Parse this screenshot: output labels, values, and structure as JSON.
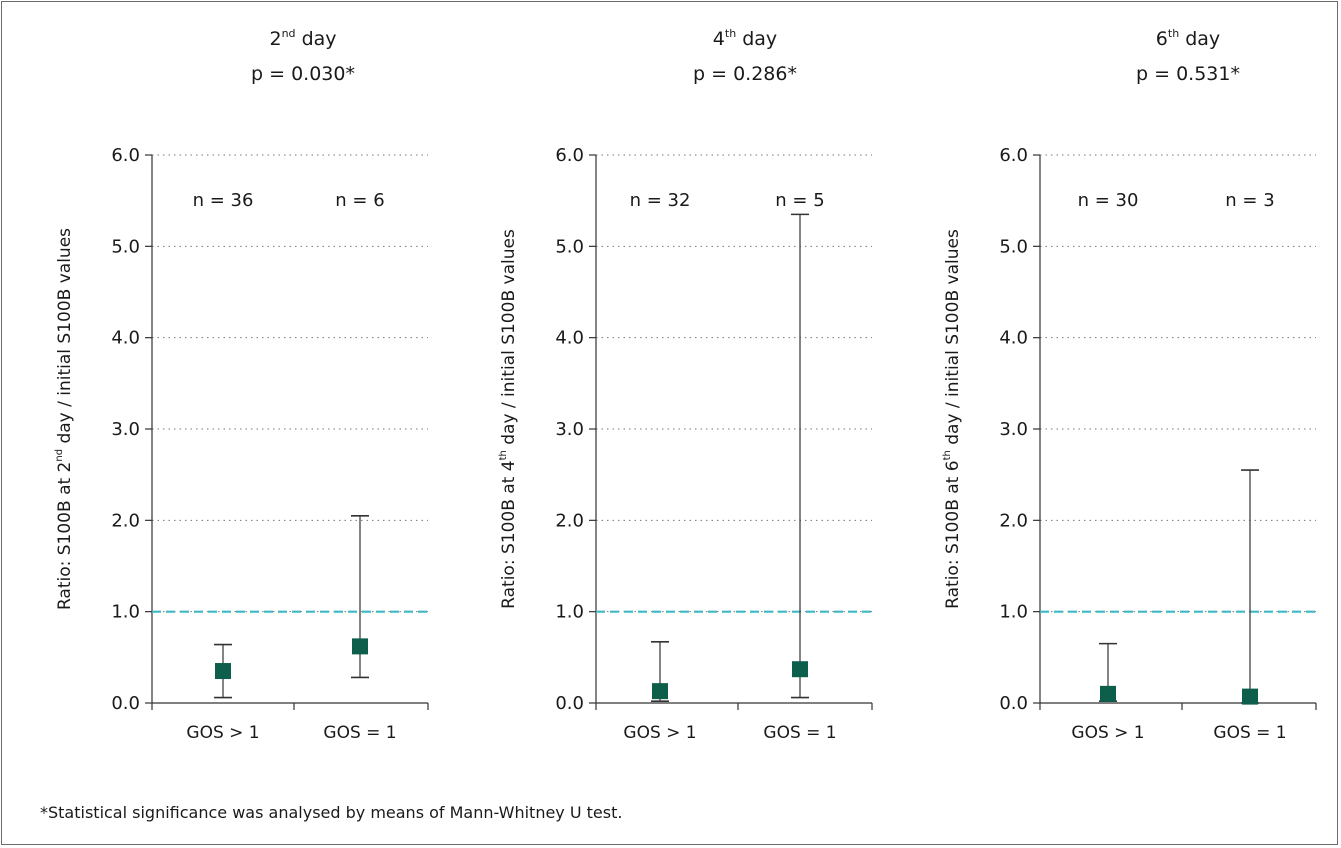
{
  "chart_data": [
    {
      "type": "scatter",
      "title_main": "2",
      "title_sup": "nd",
      "title_rest": " day",
      "pvalue": "p = 0.030*",
      "ylabel_pre": "Ratio: S100B at 2",
      "ylabel_sup": "nd",
      "ylabel_post": "  day / initial S100B values",
      "ylim": [
        0,
        6
      ],
      "yticks": [
        "0.0",
        "1.0",
        "2.0",
        "3.0",
        "4.0",
        "5.0",
        "6.0"
      ],
      "grid": "dotted horizontal",
      "reference_line": 1.0,
      "categories": [
        "GOS > 1",
        "GOS = 1"
      ],
      "n_labels": [
        "n = 36",
        "n = 6"
      ],
      "median": [
        0.35,
        0.62
      ],
      "lower": [
        0.06,
        0.28
      ],
      "upper": [
        0.64,
        2.05
      ]
    },
    {
      "type": "scatter",
      "title_main": "4",
      "title_sup": "th",
      "title_rest": " day",
      "pvalue": "p = 0.286*",
      "ylabel_pre": "Ratio: S100B at 4",
      "ylabel_sup": "th",
      "ylabel_post": "  day / initial S100B values",
      "ylim": [
        0,
        6
      ],
      "yticks": [
        "0.0",
        "1.0",
        "2.0",
        "3.0",
        "4.0",
        "5.0",
        "6.0"
      ],
      "grid": "dotted horizontal",
      "reference_line": 1.0,
      "categories": [
        "GOS > 1",
        "GOS = 1"
      ],
      "n_labels": [
        "n = 32",
        "n = 5"
      ],
      "median": [
        0.13,
        0.37
      ],
      "lower": [
        0.02,
        0.06
      ],
      "upper": [
        0.67,
        5.35
      ]
    },
    {
      "type": "scatter",
      "title_main": "6",
      "title_sup": "th",
      "title_rest": " day",
      "pvalue": "p = 0.531*",
      "ylabel_pre": "Ratio: S100B at 6",
      "ylabel_sup": "th",
      "ylabel_post": "  day / initial S100B values",
      "ylim": [
        0,
        6
      ],
      "yticks": [
        "0.0",
        "1.0",
        "2.0",
        "3.0",
        "4.0",
        "5.0",
        "6.0"
      ],
      "grid": "dotted horizontal",
      "reference_line": 1.0,
      "categories": [
        "GOS > 1",
        "GOS = 1"
      ],
      "n_labels": [
        "n = 30",
        "n = 3"
      ],
      "median": [
        0.1,
        0.07
      ],
      "lower": [
        0.02,
        0.0
      ],
      "upper": [
        0.65,
        2.55
      ]
    }
  ],
  "footnote": "*Statistical significance was analysed by means of Mann-Whitney U test.",
  "colors": {
    "marker": "#0e5e4c",
    "reference_line": "#3cb9c4",
    "axis": "#333333",
    "grid": "#777777"
  }
}
